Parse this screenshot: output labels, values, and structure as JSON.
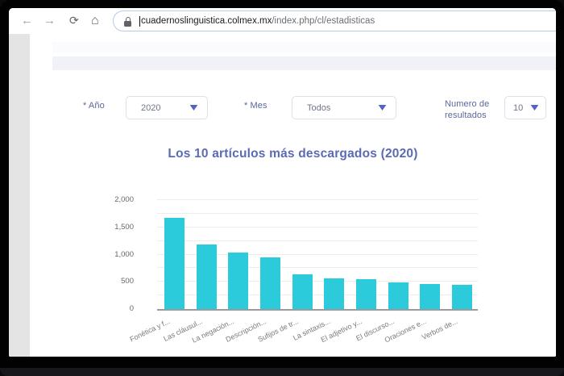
{
  "browser": {
    "back_icon": "←",
    "forward_icon": "→",
    "refresh_icon": "⟳",
    "home_icon": "⌂",
    "url_domain": "cuadernoslinguistica.colmex.mx",
    "url_path": "/index.php/cl/estadisticas"
  },
  "filters": {
    "year_label": "* Año",
    "year_value": "2020",
    "month_label": "* Mes",
    "month_value": "Todos",
    "results_label": "Numero de resultados",
    "results_value": "10"
  },
  "chart_data": {
    "type": "bar",
    "title": "Los 10 artículos más descargados (2020)",
    "categories": [
      "Fonética y f...",
      "Las cláusul...",
      "La negación...",
      "Descripción...",
      "Sufijos de tr...",
      "La sintaxis...",
      "El adjetivo y...",
      "El discurso...",
      "Oraciones e...",
      "Verbos de..."
    ],
    "values": [
      1680,
      1190,
      1040,
      950,
      640,
      570,
      550,
      485,
      460,
      450
    ],
    "xlabel": "",
    "ylabel": "",
    "ylim": [
      0,
      2000
    ],
    "yticks": [
      "0",
      "500",
      "1,000",
      "1,500",
      "2,000"
    ],
    "ytick_interval": 500,
    "gridline_interval": 250,
    "grid": true,
    "legend": false,
    "bar_color": "#2bcbdb"
  },
  "colors": {
    "bar": "#2bcbdb",
    "chart_title": "#5a6bb5",
    "filter_label": "#5c6898",
    "select_border": "#dce1ec",
    "select_text": "#6e7687",
    "chevron": "#5463c1",
    "header_band": "#f1f2f7",
    "grid_line": "#ececec",
    "axis_line": "#9b9b9b"
  }
}
